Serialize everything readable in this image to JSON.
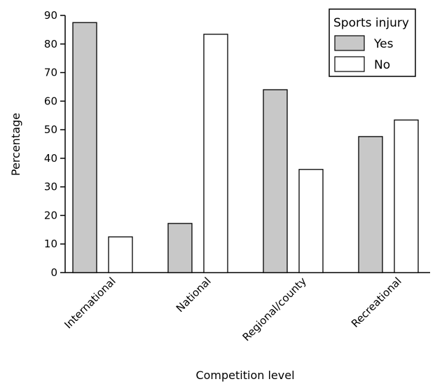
{
  "chart_data": {
    "type": "bar",
    "title": "",
    "xlabel": "Competition level",
    "ylabel": "Percentage",
    "ylim": [
      0,
      90
    ],
    "yticks": [
      0,
      10,
      20,
      30,
      40,
      50,
      60,
      70,
      80,
      90
    ],
    "categories": [
      "International",
      "National",
      "Regional/county",
      "Recreational"
    ],
    "series": [
      {
        "name": "Yes",
        "values": [
          87.5,
          17.2,
          64,
          47.6
        ],
        "color": "#c8c8c8"
      },
      {
        "name": "No",
        "values": [
          12.5,
          83.4,
          36.1,
          53.4
        ],
        "color": "#ffffff"
      }
    ],
    "legend": {
      "title": "Sports injury",
      "position": "top-right"
    },
    "grid": false
  }
}
